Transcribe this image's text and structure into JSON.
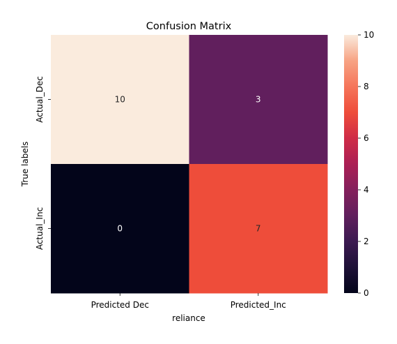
{
  "chart_data": {
    "type": "heatmap",
    "title": "Confusion Matrix",
    "xlabel": "reliance",
    "ylabel": "True labels",
    "x_categories": [
      "Predicted Dec",
      "Predicted_Inc"
    ],
    "y_categories": [
      "Actual_Dec",
      "Actual_Inc"
    ],
    "values": [
      [
        10,
        3
      ],
      [
        0,
        7
      ]
    ],
    "value_labels": [
      [
        "10",
        "3"
      ],
      [
        "0",
        "7"
      ]
    ],
    "colorbar": {
      "min": 0,
      "max": 10,
      "ticks": [
        0,
        2,
        4,
        6,
        8,
        10
      ],
      "tick_labels": [
        "0",
        "2",
        "4",
        "6",
        "8",
        "10"
      ],
      "colormap": "rocket"
    },
    "colors": {
      "annotation_dark": "#262626",
      "annotation_light": "#ffffff"
    }
  }
}
